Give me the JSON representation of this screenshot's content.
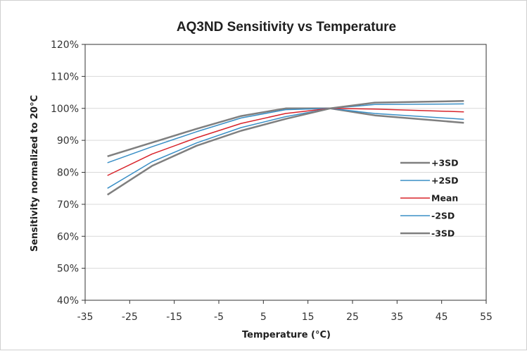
{
  "chart_data": {
    "type": "line",
    "title": "AQ3ND Sensitivity vs Temperature",
    "xlabel": "Temperature (°C)",
    "ylabel": "Sensitivity normalized to 20°C",
    "xlim": [
      -35,
      55
    ],
    "ylim": [
      40,
      120
    ],
    "x_ticks": [
      -35,
      -25,
      -15,
      -5,
      5,
      15,
      25,
      35,
      45,
      55
    ],
    "y_ticks": [
      40,
      50,
      60,
      70,
      80,
      90,
      100,
      110,
      120
    ],
    "y_tick_labels": [
      "40%",
      "50%",
      "60%",
      "70%",
      "80%",
      "90%",
      "100%",
      "110%",
      "120%"
    ],
    "x_tick_labels": [
      "-35",
      "-25",
      "-15",
      "-5",
      "5",
      "15",
      "25",
      "35",
      "45",
      "55"
    ],
    "grid": "horizontal",
    "legend_position": "right",
    "x": [
      -30,
      -20,
      -10,
      0,
      10,
      20,
      30,
      50
    ],
    "series": [
      {
        "name": "+3SD",
        "color": "#7f7f7f",
        "width": 2.5,
        "values": [
          85,
          89.3,
          93.6,
          97.6,
          100,
          100,
          97.8,
          95.5
        ]
      },
      {
        "name": "+2SD",
        "color": "#3a8fc6",
        "width": 1.5,
        "values": [
          83,
          88,
          92.7,
          97,
          99.6,
          100,
          98.4,
          96.6
        ]
      },
      {
        "name": "Mean",
        "color": "#d8232a",
        "width": 1.5,
        "values": [
          79,
          85.7,
          90.8,
          95.3,
          98.4,
          100,
          99.8,
          98.9
        ]
      },
      {
        "name": "-2SD",
        "color": "#3a8fc6",
        "width": 1.5,
        "values": [
          75,
          83.3,
          89.2,
          94,
          97.4,
          100,
          101.2,
          101.4
        ]
      },
      {
        "name": "-3SD",
        "color": "#7f7f7f",
        "width": 2.5,
        "values": [
          73,
          82,
          88.3,
          93,
          96.7,
          100,
          101.8,
          102.3
        ]
      }
    ]
  }
}
